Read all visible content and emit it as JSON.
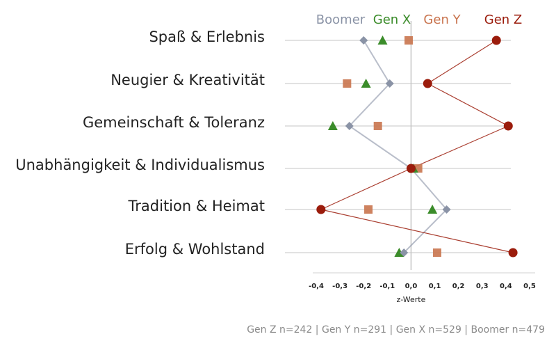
{
  "chart_data": {
    "type": "scatter",
    "categories": [
      "Spaß & Erlebnis",
      "Neugier & Kreativität",
      "Gemeinschaft & Toleranz",
      "Unabhängigkeit & Individualismus",
      "Tradition & Heimat",
      "Erfolg & Wohlstand"
    ],
    "xlabel": "z-Werte",
    "ylabel": "",
    "xlim": [
      -0.4,
      0.5
    ],
    "xticks": [
      "-0,4",
      "-0,3",
      "-0,2",
      "-0,1",
      "0,0",
      "0,1",
      "0,2",
      "0,3",
      "0,4",
      "0,5"
    ],
    "legend_position": "top",
    "grid": "horizontal",
    "series": [
      {
        "name": "Boomer",
        "color": "#8a93a6",
        "marker": "diamond",
        "connected": true,
        "values": [
          -0.2,
          -0.09,
          -0.26,
          0.0,
          0.15,
          -0.03
        ]
      },
      {
        "name": "Gen X",
        "color": "#3b8c2a",
        "marker": "triangle",
        "connected": false,
        "values": [
          -0.12,
          -0.19,
          -0.33,
          0.01,
          0.09,
          -0.05
        ]
      },
      {
        "name": "Gen Y",
        "color": "#c9744e",
        "marker": "square",
        "connected": false,
        "values": [
          -0.01,
          -0.27,
          -0.14,
          0.03,
          -0.18,
          0.11
        ]
      },
      {
        "name": "Gen Z",
        "color": "#9b1c0c",
        "marker": "circle",
        "connected": true,
        "values": [
          0.36,
          0.07,
          0.41,
          0.0,
          -0.38,
          0.43
        ]
      }
    ]
  },
  "footer": "Gen Z n=242  |  Gen Y n=291  |  Gen X n=529  |  Boomer n=479"
}
